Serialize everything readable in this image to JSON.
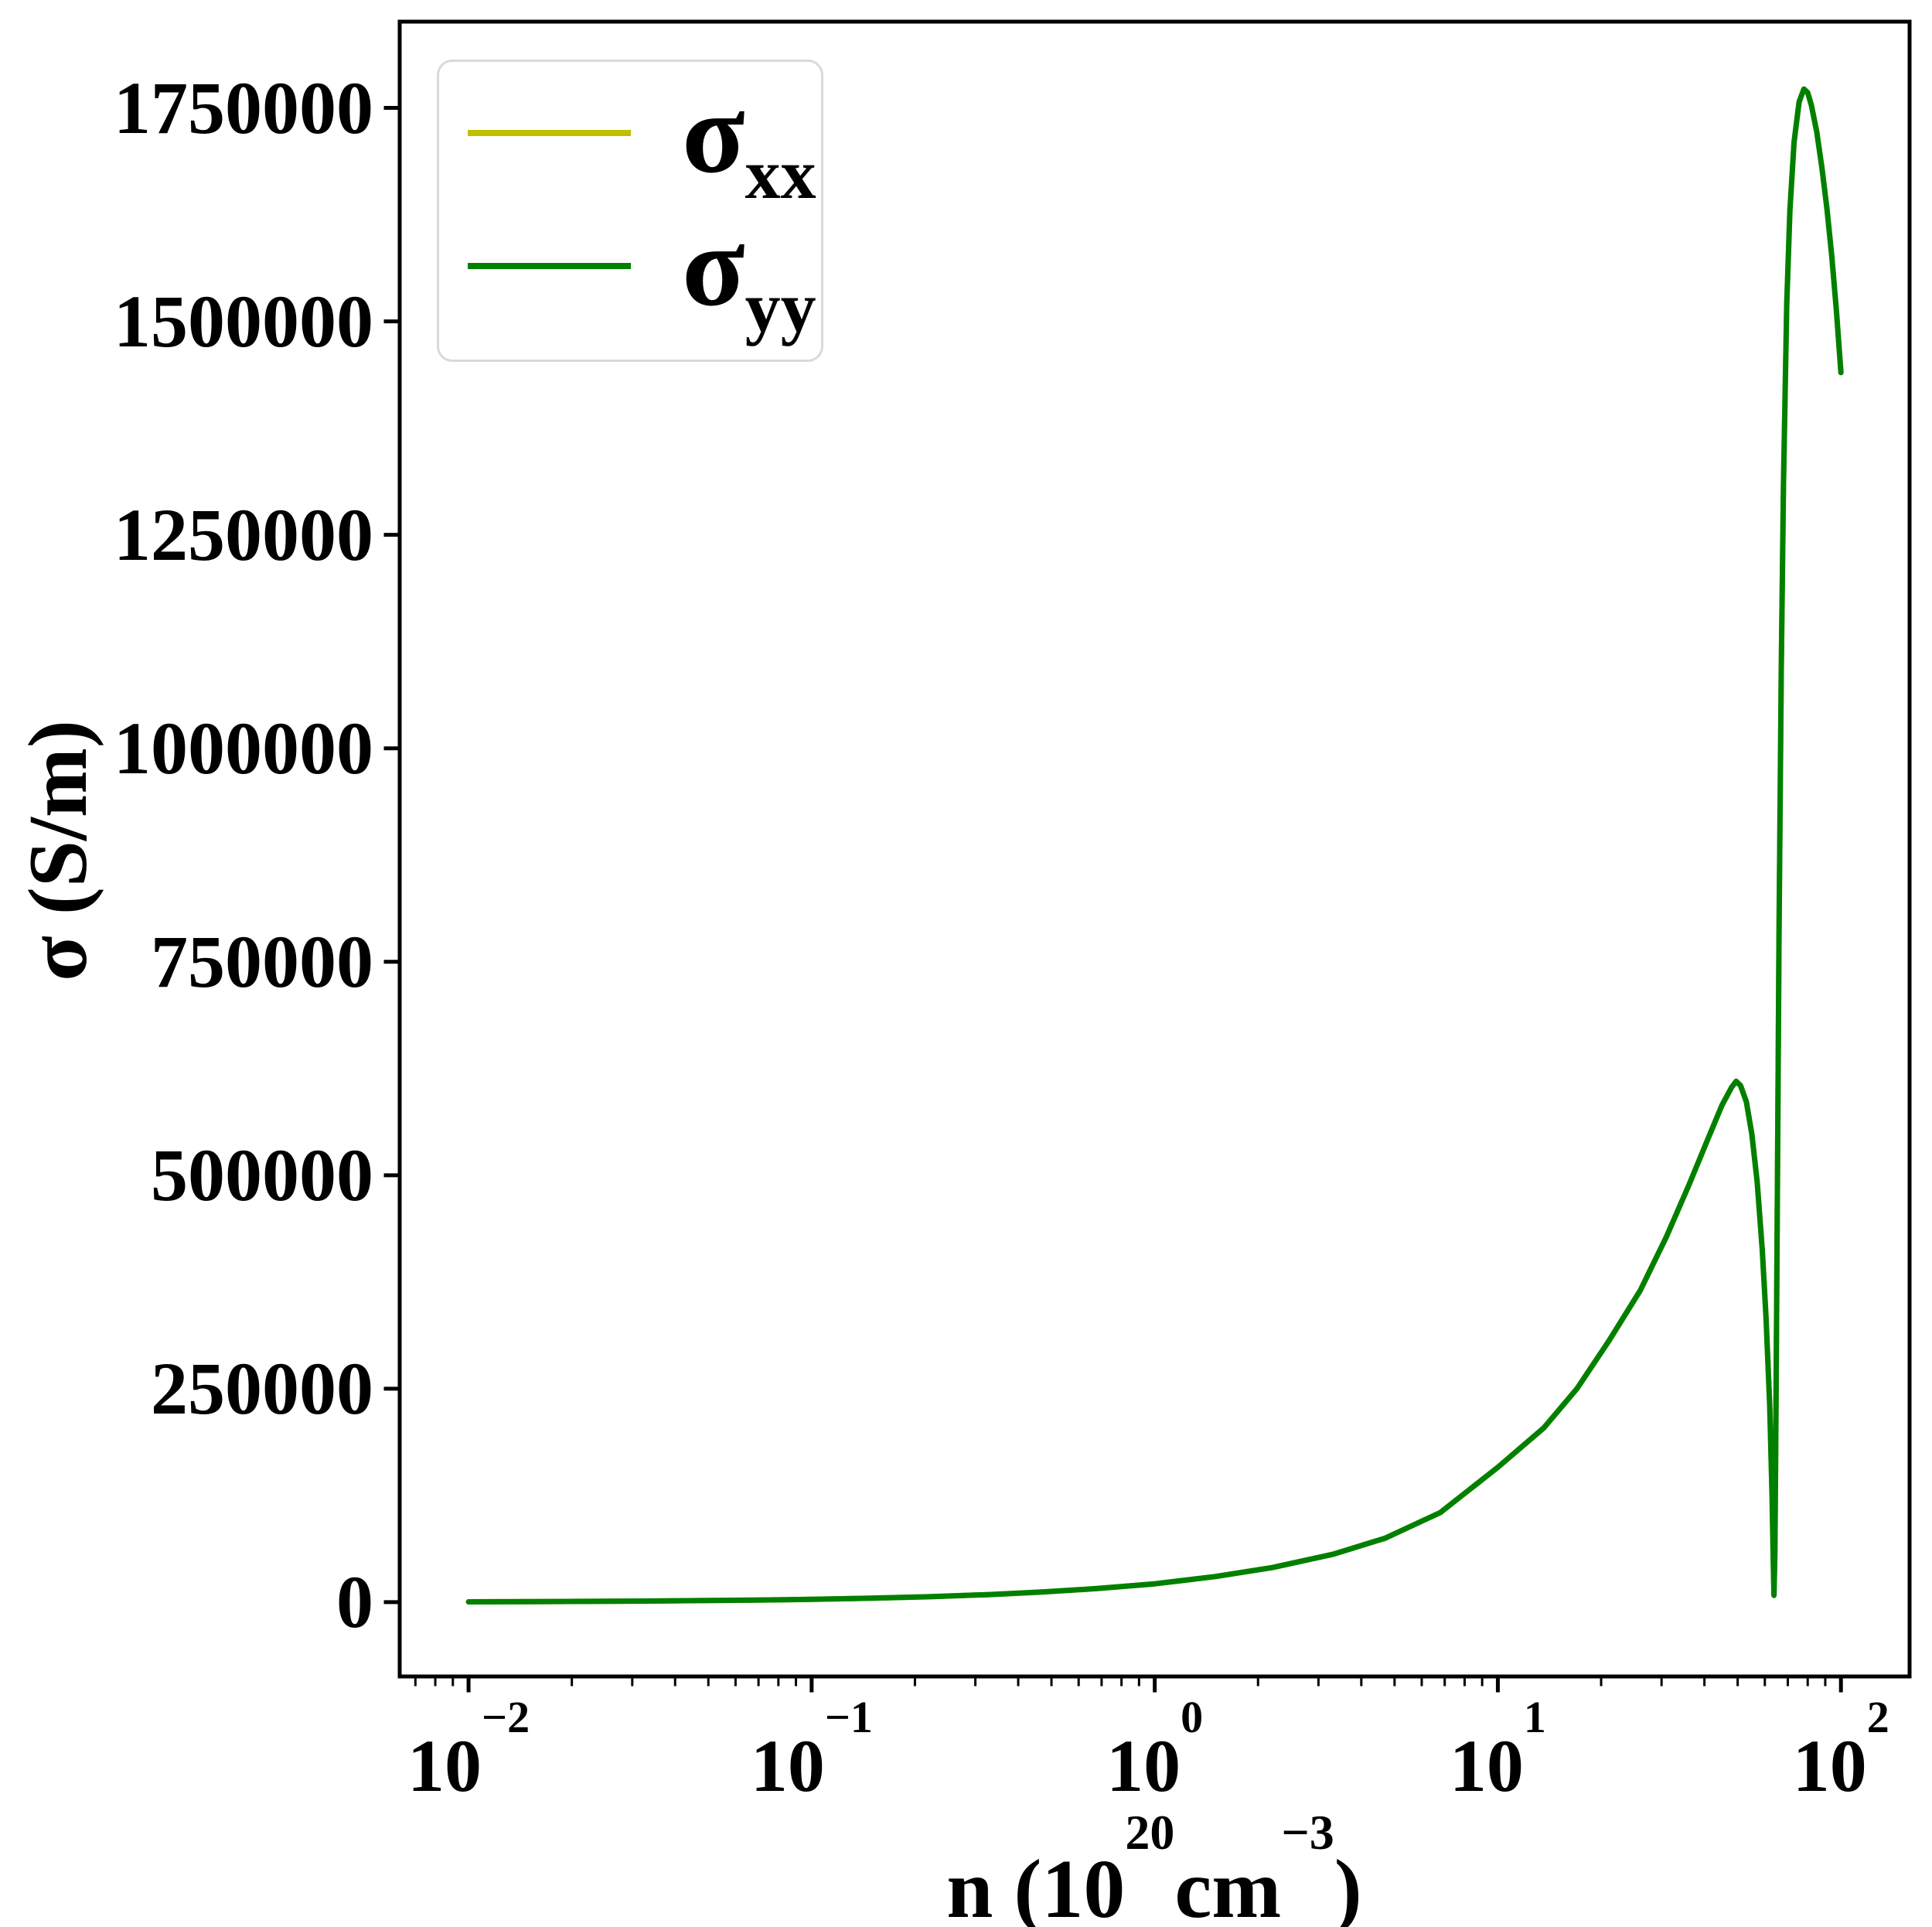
{
  "figure": {
    "background": "#ffffff",
    "frame_color": "#000000",
    "ylabel": {
      "text": "σ (S/m)"
    },
    "xlabel": {
      "pre": "n (10",
      "sup1": "20",
      "mid": " cm",
      "sup2": "−3",
      "post": ")"
    },
    "legend": {
      "border_color": "#d9d9d9",
      "entries": [
        {
          "label_main": "σ",
          "label_sub": "xx",
          "color": "#bfbf00"
        },
        {
          "label_main": "σ",
          "label_sub": "yy",
          "color": "#008000"
        }
      ]
    }
  },
  "chart_data": {
    "type": "line",
    "title": "",
    "xlabel": "n (10^20 cm^-3)",
    "ylabel": "σ (S/m)",
    "xscale": "log",
    "yscale": "linear",
    "xlim": [
      0.0063,
      158.5
    ],
    "ylim": [
      -87000,
      1851000
    ],
    "grid": false,
    "legend_position": "upper left",
    "x_tick_exponents": [
      -2,
      -1,
      0,
      1,
      2
    ],
    "x_tick_labels": [
      "−2",
      "−1",
      "0",
      "1",
      "2"
    ],
    "y_ticks": [
      0,
      250000,
      500000,
      750000,
      1000000,
      1250000,
      1500000,
      1750000
    ],
    "y_tick_labels": [
      "0",
      "250000",
      "500000",
      "750000",
      "1000000",
      "1250000",
      "1500000",
      "1750000"
    ],
    "x_minor_decades": [
      -3,
      -2,
      -1,
      0,
      1,
      2
    ],
    "series": [
      {
        "name": "σ_xx",
        "color": "#bfbf00",
        "x": [
          0.01,
          0.015,
          0.022,
          0.033,
          0.047,
          0.068,
          0.1,
          0.15,
          0.22,
          0.33,
          0.47,
          0.68,
          1.0,
          1.5,
          2.2,
          3.3,
          4.7,
          6.8,
          10,
          13.6,
          17,
          21,
          26,
          31,
          36,
          41,
          45,
          48,
          49.5,
          51,
          53,
          55,
          57,
          59,
          60.5,
          62,
          63,
          63.5,
          63.8,
          64.2,
          64.6,
          65.2,
          66,
          67,
          68,
          69.5,
          71,
          73,
          75.5,
          78,
          80,
          82,
          85,
          88,
          91,
          94,
          97,
          100
        ],
        "y": [
          400,
          600,
          900,
          1300,
          1800,
          2500,
          3300,
          4700,
          6400,
          8900,
          11900,
          16000,
          21500,
          30000,
          40500,
          56000,
          75000,
          105000,
          158000,
          204000,
          250000,
          305000,
          365000,
          428000,
          488000,
          543000,
          582000,
          603000,
          610000,
          605000,
          586000,
          548000,
          492000,
          412000,
          332000,
          230000,
          122000,
          48000,
          8000,
          60000,
          200000,
          450000,
          780000,
          1090000,
          1310000,
          1520000,
          1630000,
          1710000,
          1757000,
          1772000,
          1768000,
          1753000,
          1722000,
          1680000,
          1632000,
          1577000,
          1512000,
          1440000
        ]
      },
      {
        "name": "σ_yy",
        "color": "#008000",
        "x": [
          0.01,
          0.015,
          0.022,
          0.033,
          0.047,
          0.068,
          0.1,
          0.15,
          0.22,
          0.33,
          0.47,
          0.68,
          1.0,
          1.5,
          2.2,
          3.3,
          4.7,
          6.8,
          10,
          13.6,
          17,
          21,
          26,
          31,
          36,
          41,
          45,
          48,
          49.5,
          51,
          53,
          55,
          57,
          59,
          60.5,
          62,
          63,
          63.5,
          63.8,
          64.2,
          64.6,
          65.2,
          66,
          67,
          68,
          69.5,
          71,
          73,
          75.5,
          78,
          80,
          82,
          85,
          88,
          91,
          94,
          97,
          100
        ],
        "y": [
          400,
          600,
          900,
          1300,
          1800,
          2500,
          3300,
          4700,
          6400,
          8900,
          11900,
          16000,
          21500,
          30000,
          40500,
          56000,
          75000,
          105000,
          158000,
          204000,
          250000,
          305000,
          365000,
          428000,
          488000,
          543000,
          582000,
          603000,
          610000,
          605000,
          586000,
          548000,
          492000,
          412000,
          332000,
          230000,
          122000,
          48000,
          8000,
          60000,
          200000,
          450000,
          780000,
          1090000,
          1310000,
          1520000,
          1630000,
          1710000,
          1757000,
          1772000,
          1768000,
          1753000,
          1722000,
          1680000,
          1632000,
          1577000,
          1512000,
          1440000
        ]
      }
    ]
  }
}
